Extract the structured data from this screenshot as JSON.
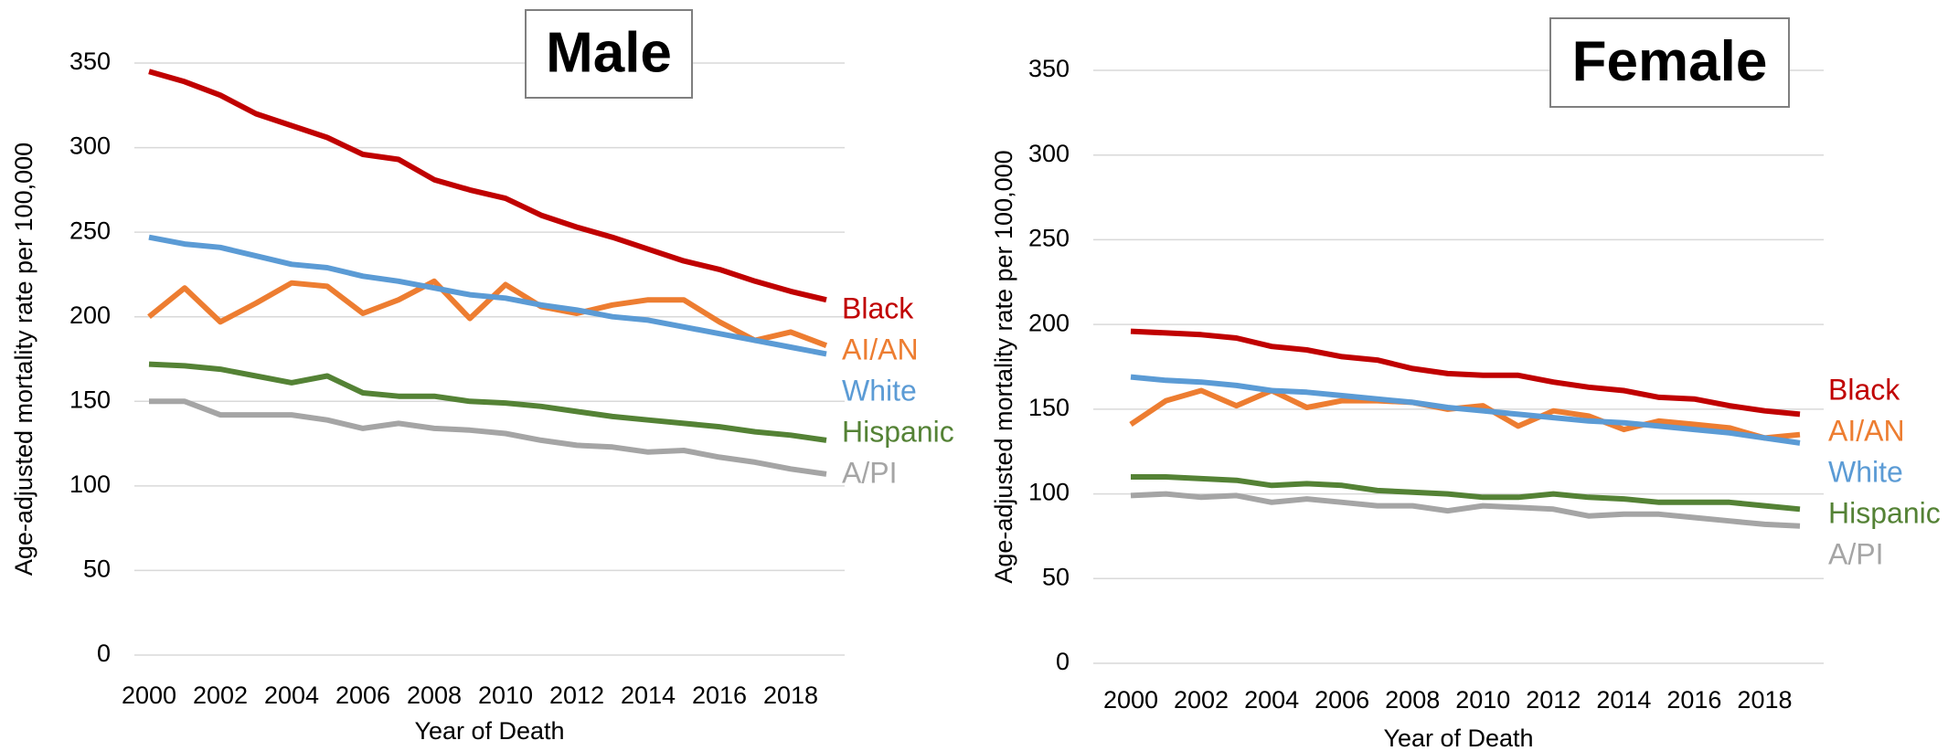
{
  "chart_data": [
    {
      "type": "line",
      "title": "Male",
      "x_label": "Year of Death",
      "y_label": "Age-adjusted mortality rate per 100,000",
      "x": [
        2000,
        2001,
        2002,
        2003,
        2004,
        2005,
        2006,
        2007,
        2008,
        2009,
        2010,
        2011,
        2012,
        2013,
        2014,
        2015,
        2016,
        2017,
        2018,
        2019
      ],
      "xlim": [
        2000,
        2019
      ],
      "xticks": [
        2000,
        2002,
        2004,
        2006,
        2008,
        2010,
        2012,
        2014,
        2016,
        2018
      ],
      "ylim": [
        0,
        350
      ],
      "yticks": [
        0,
        50,
        100,
        150,
        200,
        250,
        300,
        350
      ],
      "grid": true,
      "series": [
        {
          "name": "Black",
          "color": "#c00000",
          "values": [
            345,
            339,
            331,
            320,
            313,
            306,
            296,
            293,
            281,
            275,
            270,
            260,
            253,
            247,
            240,
            233,
            228,
            221,
            215,
            210
          ]
        },
        {
          "name": "AI/AN",
          "color": "#ed7d31",
          "values": [
            200,
            217,
            197,
            208,
            220,
            218,
            202,
            210,
            221,
            199,
            219,
            206,
            202,
            207,
            210,
            210,
            197,
            186,
            191,
            183
          ]
        },
        {
          "name": "White",
          "color": "#5b9bd5",
          "values": [
            247,
            243,
            241,
            236,
            231,
            229,
            224,
            221,
            217,
            213,
            211,
            207,
            204,
            200,
            198,
            194,
            190,
            186,
            182,
            178
          ]
        },
        {
          "name": "Hispanic",
          "color": "#548235",
          "values": [
            172,
            171,
            169,
            165,
            161,
            165,
            155,
            153,
            153,
            150,
            149,
            147,
            144,
            141,
            139,
            137,
            135,
            132,
            130,
            127
          ]
        },
        {
          "name": "A/PI",
          "color": "#a5a5a5",
          "values": [
            150,
            150,
            142,
            142,
            142,
            139,
            134,
            137,
            134,
            133,
            131,
            127,
            124,
            123,
            120,
            121,
            117,
            114,
            110,
            107
          ]
        }
      ]
    },
    {
      "type": "line",
      "title": "Female",
      "x_label": "Year of Death",
      "y_label": "Age-adjusted mortality rate per 100,000",
      "x": [
        2000,
        2001,
        2002,
        2003,
        2004,
        2005,
        2006,
        2007,
        2008,
        2009,
        2010,
        2011,
        2012,
        2013,
        2014,
        2015,
        2016,
        2017,
        2018,
        2019
      ],
      "xlim": [
        2000,
        2019
      ],
      "xticks": [
        2000,
        2002,
        2004,
        2006,
        2008,
        2010,
        2012,
        2014,
        2016,
        2018
      ],
      "ylim": [
        0,
        350
      ],
      "yticks": [
        0,
        50,
        100,
        150,
        200,
        250,
        300,
        350
      ],
      "grid": true,
      "series": [
        {
          "name": "Black",
          "color": "#c00000",
          "values": [
            196,
            195,
            194,
            192,
            187,
            185,
            181,
            179,
            174,
            171,
            170,
            170,
            166,
            163,
            161,
            157,
            156,
            152,
            149,
            147
          ]
        },
        {
          "name": "AI/AN",
          "color": "#ed7d31",
          "values": [
            141,
            155,
            161,
            152,
            161,
            151,
            155,
            155,
            154,
            150,
            152,
            140,
            149,
            146,
            138,
            143,
            141,
            139,
            133,
            135
          ]
        },
        {
          "name": "White",
          "color": "#5b9bd5",
          "values": [
            169,
            167,
            166,
            164,
            161,
            160,
            158,
            156,
            154,
            151,
            149,
            147,
            145,
            143,
            142,
            140,
            138,
            136,
            133,
            130
          ]
        },
        {
          "name": "Hispanic",
          "color": "#548235",
          "values": [
            110,
            110,
            109,
            108,
            105,
            106,
            105,
            102,
            101,
            100,
            98,
            98,
            100,
            98,
            97,
            95,
            95,
            95,
            93,
            91
          ]
        },
        {
          "name": "A/PI",
          "color": "#a5a5a5",
          "values": [
            99,
            100,
            98,
            99,
            95,
            97,
            95,
            93,
            93,
            90,
            93,
            92,
            91,
            87,
            88,
            88,
            86,
            84,
            82,
            81
          ]
        }
      ]
    }
  ]
}
